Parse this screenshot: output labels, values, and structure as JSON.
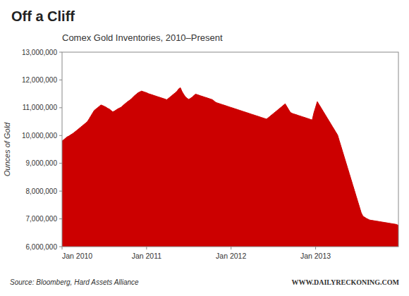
{
  "chart_data": {
    "type": "area",
    "title": "Off a Cliff",
    "subtitle": "Comex Gold Inventories, 2010–Present",
    "y_label": "Ounces of Gold",
    "annotations": [
      "Source: Bloomberg, Hard Assets Alliance",
      "WWW.DAILYRECKONING.COM"
    ],
    "color": "#CC0000",
    "grid": false,
    "xlim": [
      0,
      199
    ],
    "xticks": [
      {
        "value": 0,
        "label": "Jan 2010"
      },
      {
        "value": 50,
        "label": "Jan 2011"
      },
      {
        "value": 100,
        "label": "Jan 2012"
      },
      {
        "value": 150,
        "label": "Jan 2013"
      }
    ],
    "ylim": [
      6000000,
      13000000
    ],
    "yticks": [
      {
        "value": 6000000,
        "label": "6,000,000"
      },
      {
        "value": 7000000,
        "label": "7,000,000"
      },
      {
        "value": 8000000,
        "label": "8,000,000"
      },
      {
        "value": 9000000,
        "label": "9,000,000"
      },
      {
        "value": 10000000,
        "label": "10,000,000"
      },
      {
        "value": 11000000,
        "label": "11,000,000"
      },
      {
        "value": 12000000,
        "label": "12,000,000"
      },
      {
        "value": 13000000,
        "label": "13,000,000"
      }
    ],
    "x": [
      0,
      1,
      2,
      3,
      4,
      5,
      6,
      7,
      8,
      9,
      10,
      11,
      12,
      13,
      14,
      15,
      16,
      17,
      18,
      19,
      20,
      21,
      22,
      23,
      24,
      25,
      26,
      27,
      28,
      29,
      30,
      31,
      32,
      33,
      34,
      35,
      36,
      37,
      38,
      39,
      40,
      41,
      42,
      43,
      44,
      45,
      46,
      47,
      48,
      49,
      50,
      51,
      52,
      53,
      54,
      55,
      56,
      57,
      58,
      59,
      60,
      61,
      62,
      63,
      64,
      65,
      66,
      67,
      68,
      69,
      70,
      71,
      72,
      73,
      74,
      75,
      76,
      77,
      78,
      79,
      80,
      81,
      82,
      83,
      84,
      85,
      86,
      87,
      88,
      89,
      90,
      91,
      92,
      93,
      94,
      95,
      96,
      97,
      98,
      99,
      100,
      101,
      102,
      103,
      104,
      105,
      106,
      107,
      108,
      109,
      110,
      111,
      112,
      113,
      114,
      115,
      116,
      117,
      118,
      119,
      120,
      121,
      122,
      123,
      124,
      125,
      126,
      127,
      128,
      129,
      130,
      131,
      132,
      133,
      134,
      135,
      136,
      137,
      138,
      139,
      140,
      141,
      142,
      143,
      144,
      145,
      146,
      147,
      148,
      149,
      150,
      151,
      152,
      153,
      154,
      155,
      156,
      157,
      158,
      159,
      160,
      161,
      162,
      163,
      164,
      165,
      166,
      167,
      168,
      169,
      170,
      171,
      172,
      173,
      174,
      175,
      176,
      177,
      178,
      179,
      180,
      181,
      182,
      183,
      184,
      185,
      186,
      187,
      188,
      189,
      190,
      191,
      192,
      193,
      194,
      195,
      196,
      197,
      198,
      199
    ],
    "values": [
      9800000,
      9850000,
      9900000,
      9950000,
      9980000,
      10020000,
      10060000,
      10100000,
      10150000,
      10200000,
      10250000,
      10300000,
      10350000,
      10400000,
      10450000,
      10500000,
      10600000,
      10700000,
      10800000,
      10900000,
      10950000,
      11000000,
      11050000,
      11100000,
      11080000,
      11050000,
      11020000,
      10980000,
      10950000,
      10900000,
      10850000,
      10880000,
      10920000,
      10960000,
      10990000,
      11020000,
      11080000,
      11130000,
      11180000,
      11230000,
      11270000,
      11320000,
      11380000,
      11440000,
      11490000,
      11540000,
      11570000,
      11600000,
      11580000,
      11560000,
      11540000,
      11510000,
      11490000,
      11470000,
      11450000,
      11430000,
      11410000,
      11390000,
      11370000,
      11350000,
      11330000,
      11310000,
      11290000,
      11340000,
      11390000,
      11440000,
      11490000,
      11540000,
      11590000,
      11680000,
      11720000,
      11580000,
      11480000,
      11390000,
      11340000,
      11300000,
      11340000,
      11380000,
      11440000,
      11490000,
      11470000,
      11450000,
      11430000,
      11410000,
      11390000,
      11370000,
      11350000,
      11330000,
      11310000,
      11290000,
      11240000,
      11190000,
      11170000,
      11150000,
      11130000,
      11110000,
      11090000,
      11070000,
      11050000,
      11030000,
      11010000,
      10990000,
      10970000,
      10950000,
      10930000,
      10910000,
      10890000,
      10870000,
      10850000,
      10830000,
      10810000,
      10790000,
      10770000,
      10750000,
      10730000,
      10710000,
      10690000,
      10670000,
      10650000,
      10630000,
      10610000,
      10590000,
      10640000,
      10690000,
      10740000,
      10790000,
      10840000,
      10890000,
      10940000,
      10990000,
      11040000,
      11090000,
      11140000,
      11040000,
      10940000,
      10840000,
      10800000,
      10780000,
      10760000,
      10740000,
      10720000,
      10700000,
      10680000,
      10660000,
      10640000,
      10620000,
      10600000,
      10580000,
      10560000,
      10820000,
      11020000,
      11220000,
      11120000,
      11020000,
      10920000,
      10820000,
      10720000,
      10620000,
      10520000,
      10420000,
      10320000,
      10220000,
      10120000,
      10020000,
      9820000,
      9620000,
      9420000,
      9220000,
      9020000,
      8820000,
      8620000,
      8420000,
      8220000,
      8020000,
      7820000,
      7620000,
      7420000,
      7220000,
      7100000,
      7060000,
      7020000,
      6990000,
      6960000,
      6950000,
      6940000,
      6930000,
      6920000,
      6910000,
      6900000,
      6890000,
      6880000,
      6870000,
      6860000,
      6850000,
      6840000,
      6830000,
      6820000,
      6810000,
      6800000,
      6760000
    ]
  }
}
